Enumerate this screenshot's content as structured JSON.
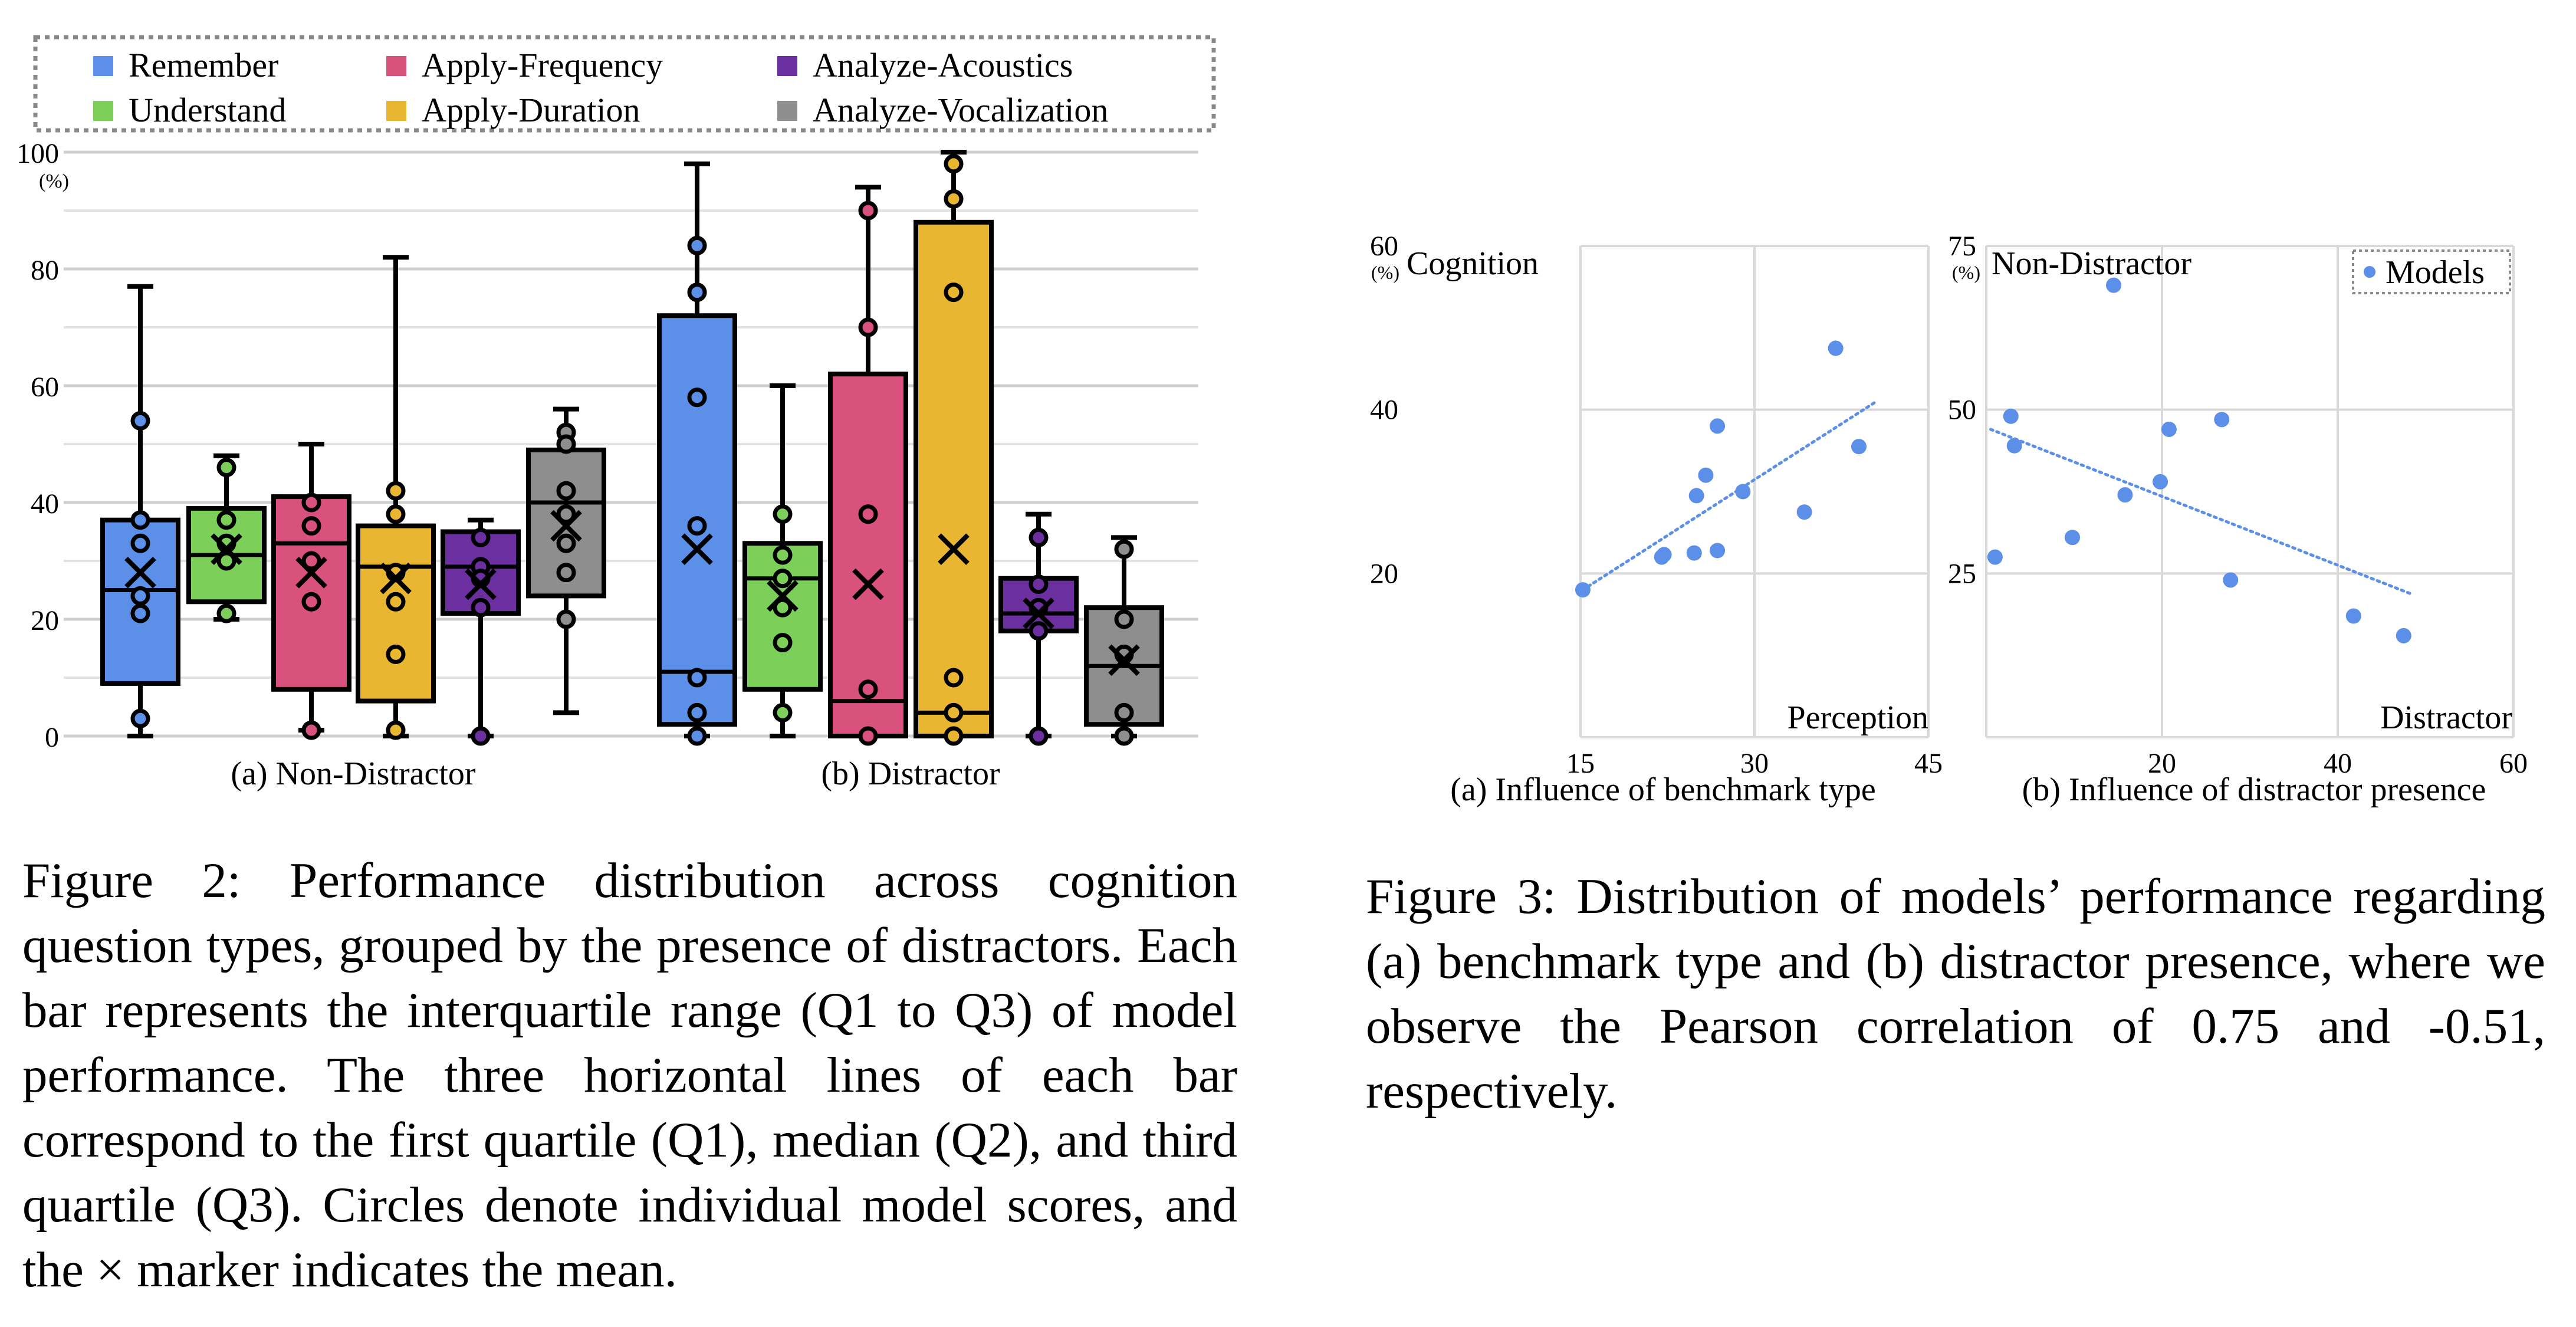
{
  "figure2": {
    "legend": [
      {
        "label": "Remember",
        "color": "#5b8fe8"
      },
      {
        "label": "Apply-Frequency",
        "color": "#d9527d"
      },
      {
        "label": "Analyze-Acoustics",
        "color": "#6b2fa0"
      },
      {
        "label": "Understand",
        "color": "#7cd05a"
      },
      {
        "label": "Apply-Duration",
        "color": "#e8b630"
      },
      {
        "label": "Analyze-Vocalization",
        "color": "#8e8e8e"
      }
    ],
    "y_ticks": [
      "0",
      "20",
      "40",
      "60",
      "80",
      "100"
    ],
    "y_unit": "(%)",
    "groups": [
      {
        "label": "(a) Non-Distractor",
        "boxes": [
          {
            "category": "Remember",
            "min": 0,
            "q1": 9,
            "median": 25,
            "q3": 37,
            "max": 77,
            "mean": 28,
            "points": [
              54,
              37,
              33,
              24,
              21,
              3
            ]
          },
          {
            "category": "Understand",
            "min": 20,
            "q1": 23,
            "median": 31,
            "q3": 39,
            "max": 48,
            "mean": 32,
            "points": [
              46,
              37,
              33,
              30,
              21
            ]
          },
          {
            "category": "Apply-Frequency",
            "min": 1,
            "q1": 8,
            "median": 33,
            "q3": 41,
            "max": 50,
            "mean": 28,
            "points": [
              40,
              36,
              30,
              23,
              1
            ]
          },
          {
            "category": "Apply-Duration",
            "min": 0,
            "q1": 6,
            "median": 29,
            "q3": 36,
            "max": 82,
            "mean": 27,
            "points": [
              42,
              38,
              28,
              23,
              14,
              1
            ]
          },
          {
            "category": "Analyze-Acoustics",
            "min": 0,
            "q1": 21,
            "median": 29,
            "q3": 35,
            "max": 37,
            "mean": 26,
            "points": [
              34,
              29,
              27,
              22,
              0
            ]
          },
          {
            "category": "Analyze-Vocalization",
            "min": 4,
            "q1": 24,
            "median": 40,
            "q3": 49,
            "max": 56,
            "mean": 36,
            "points": [
              52,
              50,
              42,
              38,
              33,
              28,
              20
            ]
          }
        ]
      },
      {
        "label": "(b) Distractor",
        "boxes": [
          {
            "category": "Remember",
            "min": 0,
            "q1": 2,
            "median": 11,
            "q3": 72,
            "max": 98,
            "mean": 32,
            "points": [
              84,
              76,
              58,
              36,
              10,
              4,
              0
            ]
          },
          {
            "category": "Understand",
            "min": 0,
            "q1": 8,
            "median": 27,
            "q3": 33,
            "max": 60,
            "mean": 24,
            "points": [
              38,
              31,
              27,
              22,
              16,
              4
            ]
          },
          {
            "category": "Apply-Frequency",
            "min": 0,
            "q1": 0,
            "median": 6,
            "q3": 62,
            "max": 94,
            "mean": 26,
            "points": [
              90,
              70,
              38,
              8,
              0
            ]
          },
          {
            "category": "Apply-Duration",
            "min": 0,
            "q1": 0,
            "median": 4,
            "q3": 88,
            "max": 100,
            "mean": 32,
            "points": [
              98,
              92,
              76,
              10,
              4,
              0
            ]
          },
          {
            "category": "Analyze-Acoustics",
            "min": 0,
            "q1": 18,
            "median": 21,
            "q3": 27,
            "max": 38,
            "mean": 21,
            "points": [
              34,
              26,
              22,
              18,
              0
            ]
          },
          {
            "category": "Analyze-Vocalization",
            "min": 0,
            "q1": 2,
            "median": 12,
            "q3": 22,
            "max": 34,
            "mean": 13,
            "points": [
              32,
              20,
              14,
              4,
              0
            ]
          }
        ]
      }
    ]
  },
  "chart_data": [
    {
      "type": "box",
      "title": "Figure 2",
      "xlabel": "",
      "ylabel": "(%)",
      "ylim": [
        0,
        100
      ],
      "groups": [
        "(a) Non-Distractor",
        "(b) Distractor"
      ],
      "categories": [
        "Remember",
        "Understand",
        "Apply-Frequency",
        "Apply-Duration",
        "Analyze-Acoustics",
        "Analyze-Vocalization"
      ]
    },
    {
      "type": "scatter",
      "title": "(a) Influence of benchmark type",
      "xlabel": "Perception",
      "ylabel": "Cognition",
      "y_unit": "(%)",
      "xlim": [
        15,
        45
      ],
      "ylim": [
        0,
        60
      ],
      "x_ticks": [
        "15",
        "30",
        "45"
      ],
      "y_ticks": [
        "20",
        "40",
        "60"
      ],
      "x": [
        15.2,
        22.0,
        22.2,
        24.8,
        25.0,
        25.8,
        26.8,
        26.8,
        29.0,
        34.3,
        37.0,
        39.0
      ],
      "y": [
        18.0,
        22.0,
        22.3,
        22.5,
        29.5,
        32.0,
        38.0,
        22.8,
        30.0,
        27.5,
        47.5,
        35.5
      ],
      "trend": {
        "x1": 15.2,
        "y1": 18.0,
        "x2": 40.5,
        "y2": 41.0
      }
    },
    {
      "type": "scatter",
      "title": "(b) Influence of distractor presence",
      "xlabel": "Distractor",
      "ylabel": "Non-Distractor",
      "y_unit": "(%)",
      "legend": "Models",
      "xlim": [
        0,
        60
      ],
      "ylim": [
        0,
        75
      ],
      "x_ticks": [
        "20",
        "40",
        "60"
      ],
      "y_ticks": [
        "25",
        "50",
        "75"
      ],
      "x": [
        14.5,
        2.8,
        3.2,
        1.0,
        9.8,
        15.8,
        19.8,
        20.8,
        26.8,
        27.8,
        41.8,
        47.5
      ],
      "y": [
        69.0,
        49.0,
        44.5,
        27.5,
        30.5,
        37.0,
        39.0,
        47.0,
        48.5,
        24.0,
        18.5,
        15.5
      ],
      "trend": {
        "x1": 0.5,
        "y1": 47.0,
        "x2": 48.5,
        "y2": 21.8
      }
    }
  ],
  "figure3": {
    "panel_a": {
      "caption": "(a) Influence of benchmark type",
      "y_title": "Cognition",
      "x_title": "Perception",
      "y_unit": "(%)"
    },
    "panel_b": {
      "caption": "(b) Influence of distractor presence",
      "y_title": "Non-Distractor",
      "x_title": "Distractor",
      "y_unit": "(%)",
      "legend_label": "Models"
    },
    "point_color": "#5b8fe8"
  },
  "captions": {
    "figure2": {
      "label": "Figure 2:",
      "text": "Performance distribution across cognition question types, grouped by the presence of distractors. Each bar represents the interquartile range (Q1 to Q3) of model performance. The three horizontal lines of each bar correspond to the first quartile (Q1), median (Q2), and third quartile (Q3). Circles denote individual model scores, and the × marker indicates the mean."
    },
    "figure3": {
      "label": "Figure 3:",
      "text": "Distribution of models’ performance regarding (a) benchmark type and (b) distractor presence, where we observe the Pearson correlation of 0.75 and -0.51, respectively."
    }
  }
}
